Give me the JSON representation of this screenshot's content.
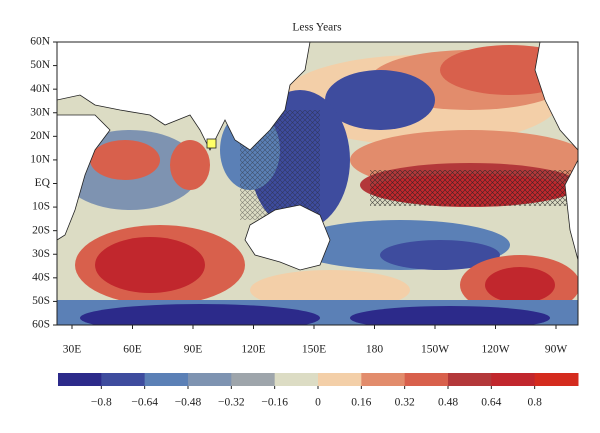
{
  "title": "Less Years",
  "map": {
    "lat_labels": [
      "60N",
      "50N",
      "40N",
      "30N",
      "20N",
      "10N",
      "EQ",
      "10S",
      "20S",
      "30S",
      "40S",
      "50S",
      "60S"
    ],
    "lon_labels": [
      "30E",
      "60E",
      "90E",
      "120E",
      "150E",
      "180",
      "150W",
      "120W",
      "90W"
    ]
  },
  "colorbar": {
    "lim": [
      -0.96,
      0.96
    ],
    "colors": [
      "#2c2a8a",
      "#3e4c9e",
      "#5b80b6",
      "#7e93b1",
      "#9ea5ab",
      "#dcdcc4",
      "#f3cfa8",
      "#e28c6c",
      "#d8604c",
      "#b3383a",
      "#c1272d",
      "#d42b1e"
    ],
    "ticks": [
      {
        "value": -0.8,
        "label": "−0.8"
      },
      {
        "value": -0.64,
        "label": "−0.64"
      },
      {
        "value": -0.48,
        "label": "−0.48"
      },
      {
        "value": -0.32,
        "label": "−0.32"
      },
      {
        "value": -0.16,
        "label": "−0.16"
      },
      0,
      0.16,
      0.32,
      0.48,
      0.64,
      0.8
    ]
  }
}
